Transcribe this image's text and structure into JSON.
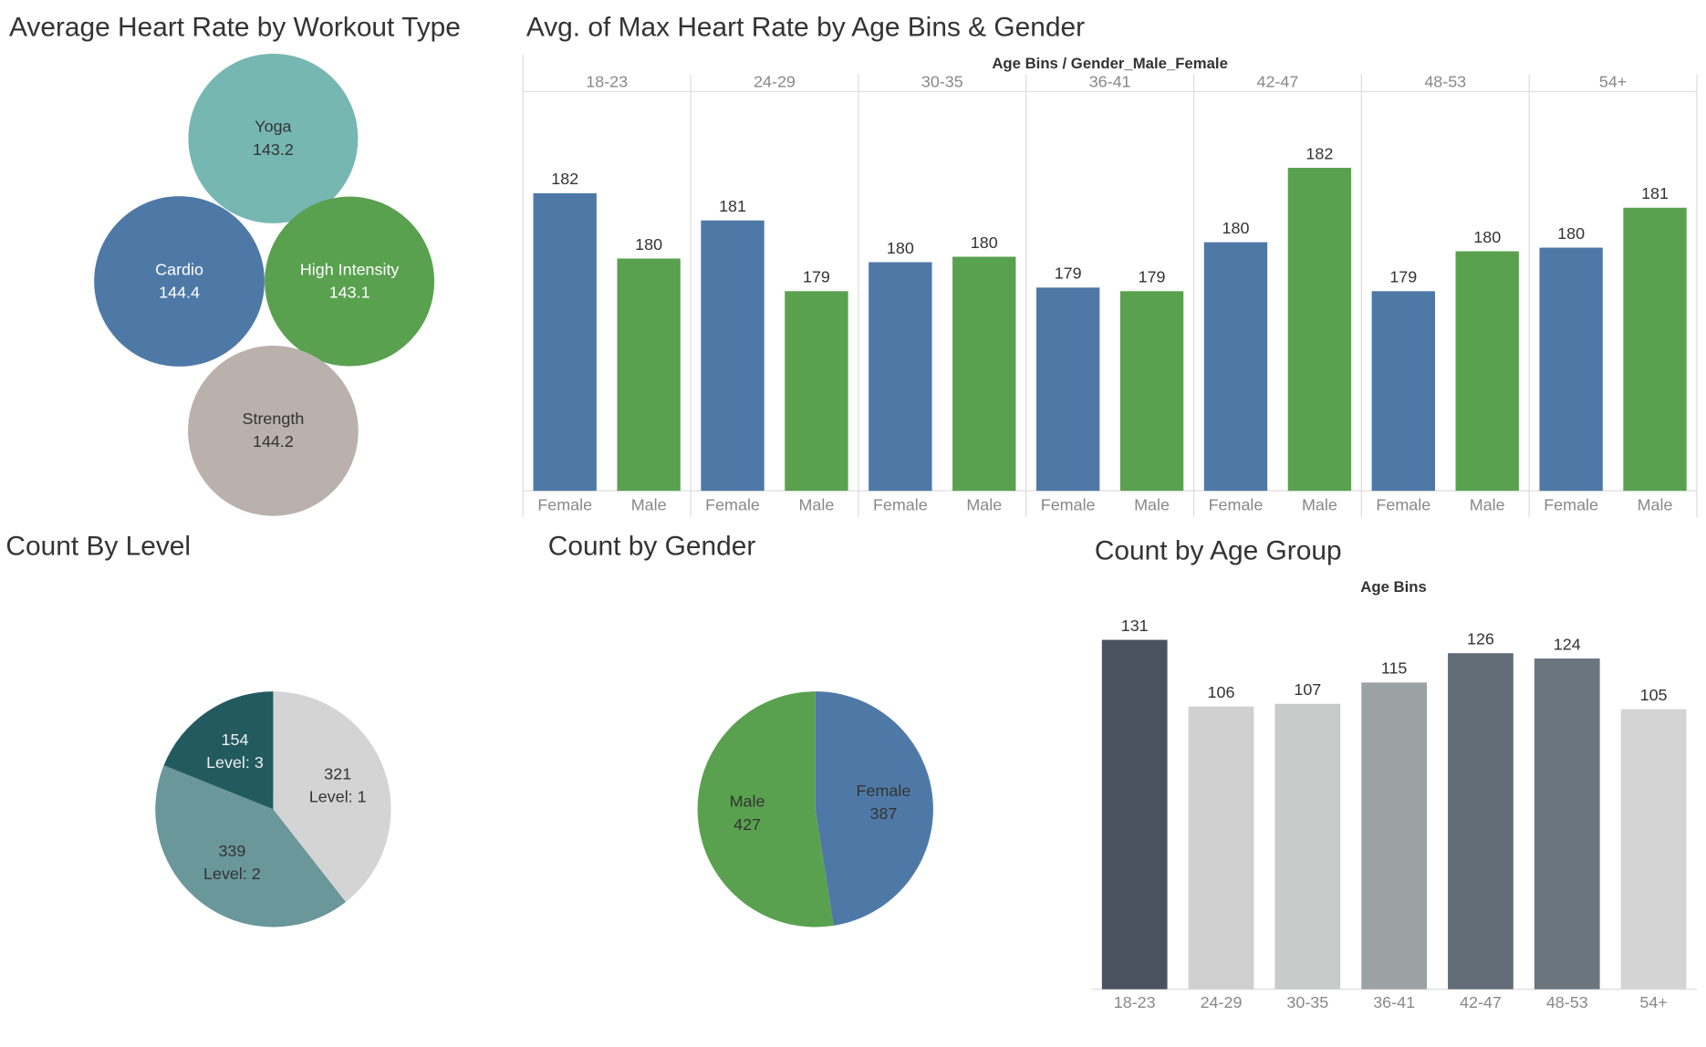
{
  "chart_data": [
    {
      "type": "bubble",
      "title": "Average Heart Rate by Workout Type",
      "categories": [
        "Yoga",
        "Cardio",
        "High Intensity",
        "Strength"
      ],
      "values": [
        143.2,
        144.4,
        143.1,
        144.2
      ],
      "colors": [
        "#76b7b2",
        "#4e79a7",
        "#59a14f",
        "#bab0ac"
      ]
    },
    {
      "type": "grouped_bar",
      "title": "Avg. of Max Heart Rate by Age Bins & Gender",
      "axis_header": "Age Bins  /  Gender_Male_Female",
      "categories": [
        "18-23",
        "24-29",
        "30-35",
        "36-41",
        "42-47",
        "48-53",
        "54+"
      ],
      "series": [
        {
          "name": "Female",
          "color": "#4e79a7",
          "values": [
            181.7,
            180.95,
            179.8,
            179.1,
            180.35,
            179.0,
            180.2
          ],
          "value_labels": [
            "182",
            "181",
            "180",
            "179",
            "180",
            "179",
            "180"
          ]
        },
        {
          "name": "Male",
          "color": "#59a14f",
          "values": [
            179.9,
            179.0,
            179.95,
            179.0,
            182.4,
            180.1,
            181.3
          ],
          "value_labels": [
            "180",
            "179",
            "180",
            "179",
            "182",
            "180",
            "181"
          ]
        }
      ],
      "ylim": [
        173.5,
        184.5
      ]
    },
    {
      "type": "pie",
      "title": "Count By Level",
      "categories": [
        "Level: 1",
        "Level: 2",
        "Level: 3"
      ],
      "values": [
        321,
        339,
        154
      ],
      "colors": [
        "#d4d4d4",
        "#6a9799",
        "#235a5f"
      ]
    },
    {
      "type": "pie",
      "title": "Count by Gender",
      "categories": [
        "Female",
        "Male"
      ],
      "values": [
        387,
        427
      ],
      "colors": [
        "#4e79a7",
        "#59a14f"
      ]
    },
    {
      "type": "bar",
      "title": "Count by Age Group",
      "axis_header": "Age Bins",
      "categories": [
        "18-23",
        "24-29",
        "30-35",
        "36-41",
        "42-47",
        "48-53",
        "54+"
      ],
      "values": [
        131,
        106,
        107,
        115,
        126,
        124,
        105
      ],
      "colors": [
        "#4a5260",
        "#d0d0d0",
        "#c9cbca",
        "#9ba2a3",
        "#626d77",
        "#6b757d",
        "#d4d4d4"
      ],
      "ylim": [
        0,
        146
      ]
    }
  ]
}
